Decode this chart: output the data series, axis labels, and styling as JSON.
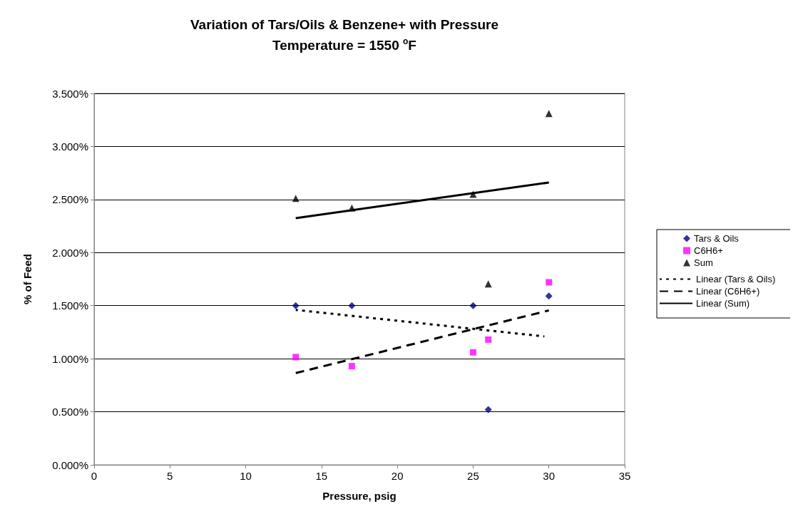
{
  "chart_data": {
    "type": "scatter",
    "title": "Variation of Tars/Oils & Benzene+ with Pressure",
    "subtitle": "Temperature = 1550 $^{o}$F",
    "xlabel": "Pressure, psig",
    "ylabel": "% of Feed",
    "series": [
      {
        "name": "Tars & Oils",
        "marker": "diamond",
        "color": "#000080",
        "x": [
          13.3,
          17,
          25,
          26,
          30
        ],
        "values": [
          1.5,
          1.5,
          1.5,
          0.52,
          1.59
        ]
      },
      {
        "name": "C6H6+",
        "marker": "square",
        "color": "#ff00ff",
        "x": [
          13.3,
          17,
          25,
          26,
          30
        ],
        "values": [
          1.015,
          0.93,
          1.06,
          1.18,
          1.72
        ]
      },
      {
        "name": "Sum",
        "marker": "triangle",
        "color": "#000000",
        "x": [
          13.3,
          17,
          25,
          26,
          30
        ],
        "values": [
          2.51,
          2.42,
          2.55,
          1.705,
          3.31
        ]
      },
      {
        "name": "Linear (Tars & Oils)",
        "type": "line",
        "line_style": "dotted",
        "marker": "none",
        "color": "#000000",
        "x": [
          13.3,
          29.7
        ],
        "values": [
          1.46,
          1.21
        ]
      },
      {
        "name": "Linear (C6H6+)",
        "type": "line",
        "line_style": "dashed",
        "marker": "none",
        "color": "#000000",
        "x": [
          13.3,
          30
        ],
        "values": [
          0.865,
          1.455
        ]
      },
      {
        "name": "Linear (Sum)",
        "type": "line",
        "line_style": "solid",
        "marker": "none",
        "color": "#000000",
        "x": [
          13.3,
          30
        ],
        "values": [
          2.325,
          2.66
        ]
      }
    ],
    "xlim": [
      0,
      35
    ],
    "xticks": [
      0,
      5,
      10,
      15,
      20,
      25,
      30,
      35
    ],
    "ylim": [
      0,
      3.5
    ],
    "yticks": [
      {
        "value": 0,
        "label": "0.000%"
      },
      {
        "value": 0.5,
        "label": "0.500%"
      },
      {
        "value": 1,
        "label": "1.000%"
      },
      {
        "value": 1.5,
        "label": "1.500%"
      },
      {
        "value": 2,
        "label": "2.000%"
      },
      {
        "value": 2.5,
        "label": "2.500%"
      },
      {
        "value": 3,
        "label": "3.000%"
      },
      {
        "value": 3.5,
        "label": "3.500%"
      }
    ],
    "grid": "y",
    "legend": "right"
  }
}
